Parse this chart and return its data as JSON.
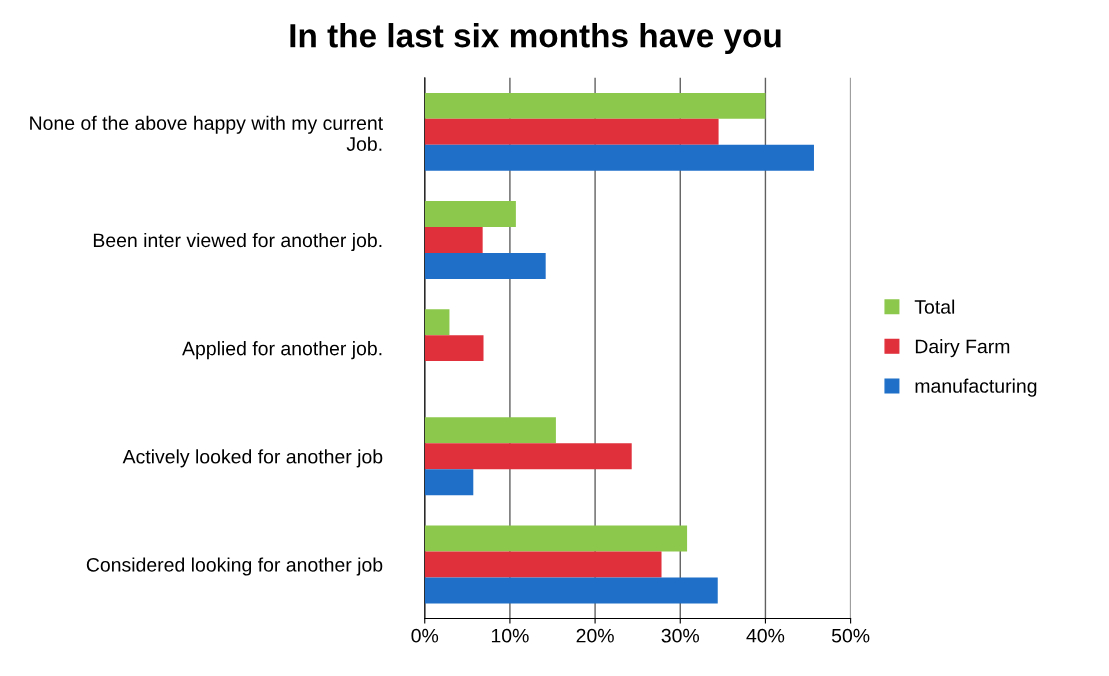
{
  "chart_data": {
    "type": "bar",
    "orientation": "horizontal",
    "title": "In the last six months have you",
    "categories": [
      "None of the above happy with my current Job.",
      "Been inter viewed for another job.",
      "Applied for another job.",
      "Actively looked for another job",
      "Considered looking for another job"
    ],
    "series": [
      {
        "name": "Total",
        "color": "#8cc84b",
        "values": [
          40.0,
          10.7,
          2.9,
          15.4,
          30.8
        ]
      },
      {
        "name": "Dairy Farm",
        "color": "#e0303c",
        "values": [
          34.5,
          6.8,
          6.9,
          24.3,
          27.8
        ]
      },
      {
        "name": "manufacturing",
        "color": "#1f6fc8",
        "values": [
          45.7,
          14.2,
          0,
          5.7,
          34.4
        ]
      }
    ],
    "xlim": [
      0,
      50
    ],
    "xticks": [
      {
        "value": 0,
        "label": "0%"
      },
      {
        "value": 10,
        "label": "10%"
      },
      {
        "value": 20,
        "label": "20%"
      },
      {
        "value": 30,
        "label": "30%"
      },
      {
        "value": 40,
        "label": "40%"
      },
      {
        "value": 50,
        "label": "50%"
      }
    ],
    "grid": "x",
    "legend": "right"
  }
}
